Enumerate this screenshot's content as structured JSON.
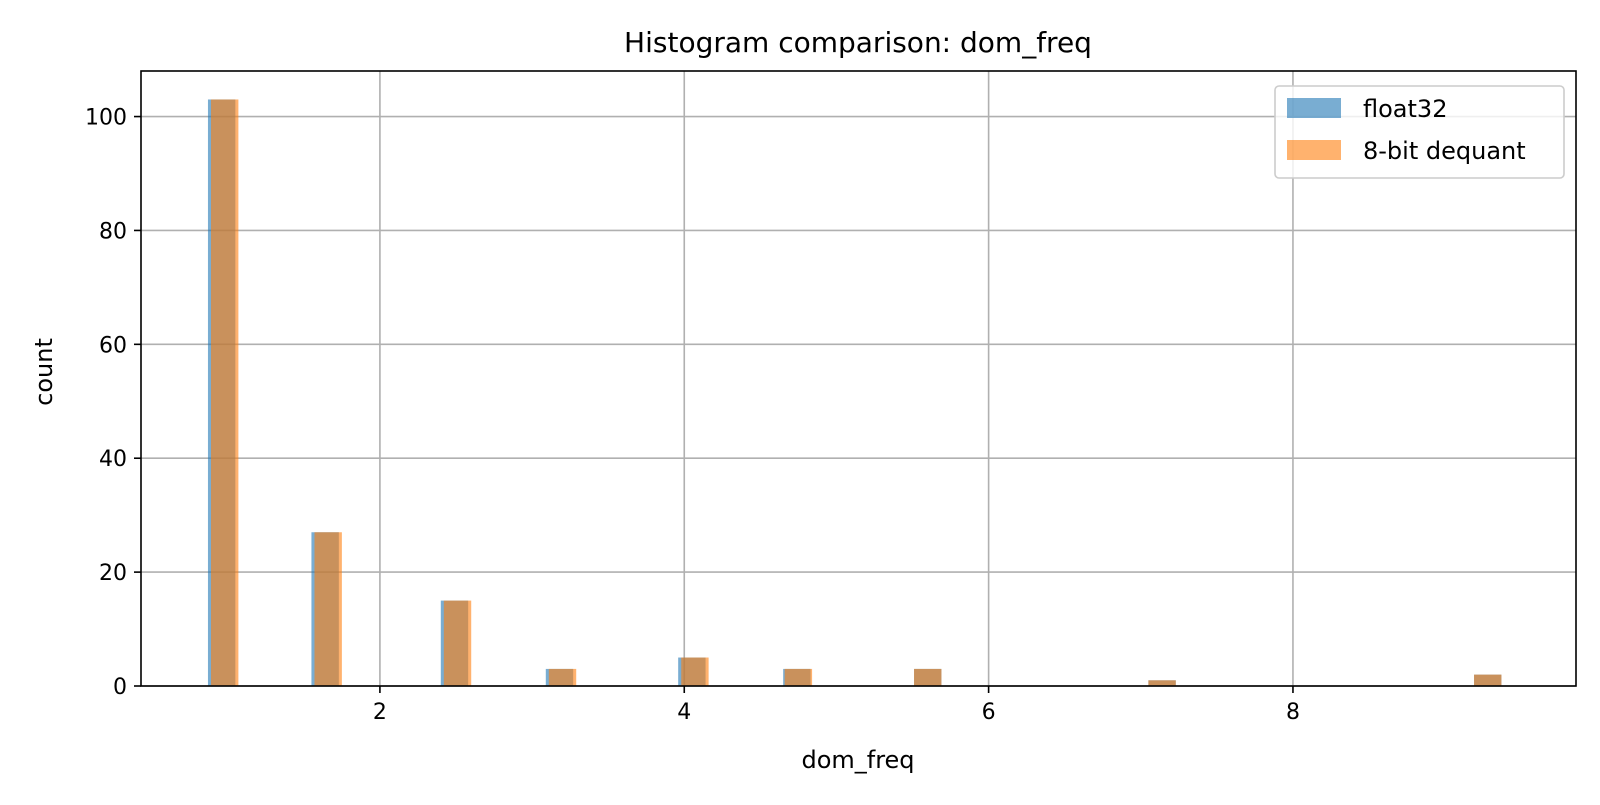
{
  "chart_data": {
    "type": "bar",
    "title": "Histogram comparison: dom_freq",
    "xlabel": "dom_freq",
    "ylabel": "count",
    "xlim": [
      0.43,
      9.86
    ],
    "ylim": [
      0,
      108
    ],
    "xticks": [
      2,
      4,
      6,
      8
    ],
    "yticks": [
      0,
      20,
      40,
      60,
      80,
      100
    ],
    "grid": true,
    "legend_position": "top-right",
    "series": [
      {
        "name": "float32",
        "color": "#1f77b4",
        "opacity": 0.6,
        "bins": [
          {
            "x0": 0.87,
            "x1": 1.05,
            "count": 103
          },
          {
            "x0": 1.55,
            "x1": 1.73,
            "count": 27
          },
          {
            "x0": 2.4,
            "x1": 2.58,
            "count": 15
          },
          {
            "x0": 3.09,
            "x1": 3.27,
            "count": 3
          },
          {
            "x0": 3.96,
            "x1": 4.14,
            "count": 5
          },
          {
            "x0": 4.65,
            "x1": 4.83,
            "count": 3
          },
          {
            "x0": 5.51,
            "x1": 5.69,
            "count": 3
          },
          {
            "x0": 7.05,
            "x1": 7.23,
            "count": 1
          },
          {
            "x0": 9.19,
            "x1": 9.37,
            "count": 2
          }
        ]
      },
      {
        "name": "8-bit dequant",
        "color": "#ff7f0e",
        "opacity": 0.6,
        "bins": [
          {
            "x0": 0.89,
            "x1": 1.07,
            "count": 103
          },
          {
            "x0": 1.57,
            "x1": 1.75,
            "count": 27
          },
          {
            "x0": 2.42,
            "x1": 2.6,
            "count": 15
          },
          {
            "x0": 3.11,
            "x1": 3.29,
            "count": 3
          },
          {
            "x0": 3.98,
            "x1": 4.16,
            "count": 5
          },
          {
            "x0": 4.66,
            "x1": 4.84,
            "count": 3
          },
          {
            "x0": 5.51,
            "x1": 5.69,
            "count": 3
          },
          {
            "x0": 7.05,
            "x1": 7.23,
            "count": 1
          },
          {
            "x0": 9.19,
            "x1": 9.37,
            "count": 2
          }
        ]
      }
    ]
  }
}
